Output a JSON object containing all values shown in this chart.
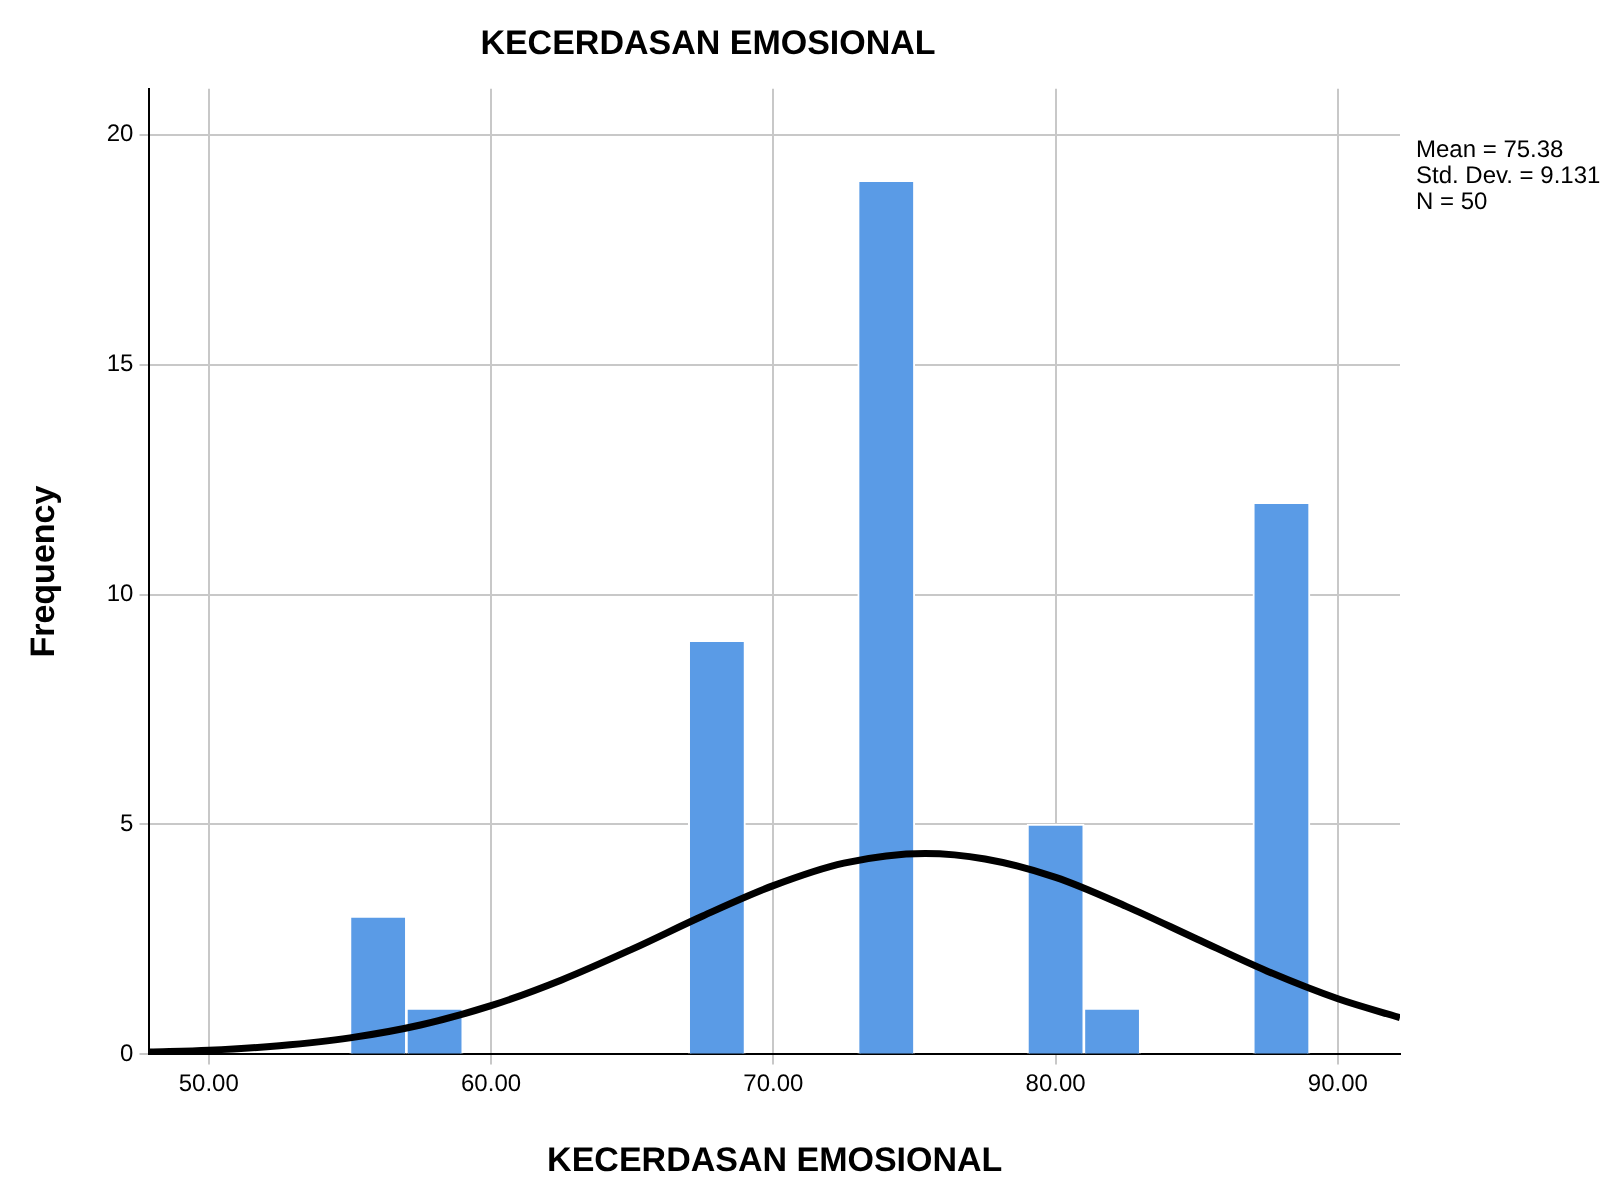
{
  "chart_data": {
    "type": "histogram",
    "title": "KECERDASAN EMOSIONAL",
    "xlabel": "KECERDASAN EMOSIONAL",
    "ylabel": "Frequency",
    "annotations": [
      "Mean = 75.38",
      "Std. Dev. = 9.131",
      "N = 50"
    ],
    "bins": [
      55,
      57,
      59,
      61,
      63,
      65,
      67,
      69,
      71,
      73,
      75,
      77,
      79,
      81,
      83,
      85,
      87,
      89
    ],
    "values": [
      3,
      1,
      0,
      0,
      0,
      0,
      9,
      0,
      0,
      19,
      0,
      0,
      5,
      1,
      0,
      0,
      12
    ],
    "color": "#5a9be6",
    "series": [
      {
        "type": "line",
        "color": "#000000",
        "x": [
          47.9,
          50,
          52.5,
          55,
          57.5,
          60,
          62.5,
          65,
          67.5,
          70,
          72.5,
          75.38,
          77.5,
          80,
          82.5,
          85,
          87.5,
          90,
          92.2
        ],
        "values": [
          0.05,
          0.09,
          0.19,
          0.36,
          0.64,
          1.06,
          1.62,
          2.29,
          3.01,
          3.67,
          4.16,
          4.37,
          4.25,
          3.85,
          3.22,
          2.51,
          1.81,
          1.21,
          0.8
        ]
      }
    ],
    "xlim": [
      47.9,
      92.2
    ],
    "xticks": [
      {
        "value": 50,
        "label": "50.00"
      },
      {
        "value": 60,
        "label": "60.00"
      },
      {
        "value": 70,
        "label": "70.00"
      },
      {
        "value": 80,
        "label": "80.00"
      },
      {
        "value": 90,
        "label": "90.00"
      }
    ],
    "ylim": [
      0,
      21
    ],
    "yticks": [
      0,
      5,
      10,
      15,
      20
    ],
    "grid": true
  }
}
